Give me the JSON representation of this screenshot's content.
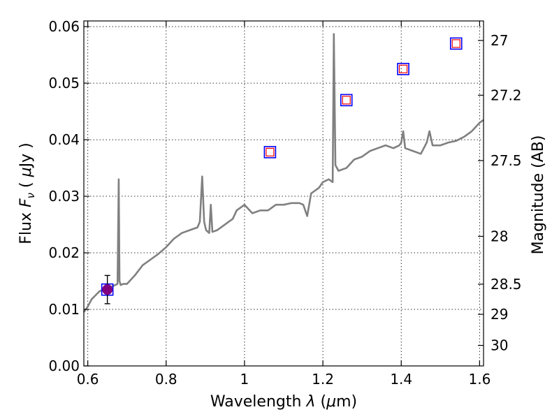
{
  "chart_data": {
    "type": "line",
    "xlabel": "Wavelength",
    "xlabel_symbol": "λ",
    "xlabel_unit_open": "(",
    "xlabel_unit_mu": "μ",
    "xlabel_unit_rest": "m)",
    "ylabel": "Flux",
    "ylabel_symbol": "F",
    "ylabel_sub": "ν",
    "ylabel_unit_open": "(",
    "ylabel_unit_mu": "μ",
    "ylabel_unit_rest": "Jy )",
    "y2label": "Magnitude (AB)",
    "xlim": [
      0.59,
      1.61
    ],
    "ylim": [
      0.0,
      0.061
    ],
    "grid": true,
    "x_ticks": [
      0.6,
      0.8,
      1.0,
      1.2,
      1.4,
      1.6
    ],
    "x_tick_labels": [
      "0.6",
      "0.8",
      "1",
      "1.2",
      "1.4",
      "1.6"
    ],
    "y_ticks": [
      0.0,
      0.01,
      0.02,
      0.03,
      0.04,
      0.05,
      0.06
    ],
    "y_tick_labels": [
      "0.00",
      "0.01",
      "0.02",
      "0.03",
      "0.04",
      "0.05",
      "0.06"
    ],
    "y2_ticks": [
      27,
      27.2,
      27.5,
      28,
      28.5,
      29,
      30
    ],
    "y2_tick_labels": [
      "27",
      "27.2",
      "27.5",
      "28",
      "28.5",
      "29",
      "30"
    ],
    "model_color": "#808080",
    "model_spectrum": {
      "x": [
        0.59,
        0.6,
        0.61,
        0.62,
        0.63,
        0.64,
        0.65,
        0.66,
        0.67,
        0.676,
        0.679,
        0.681,
        0.684,
        0.69,
        0.7,
        0.72,
        0.74,
        0.76,
        0.78,
        0.8,
        0.82,
        0.84,
        0.86,
        0.88,
        0.886,
        0.892,
        0.897,
        0.902,
        0.91,
        0.914,
        0.918,
        0.93,
        0.95,
        0.96,
        0.97,
        0.98,
        1.0,
        1.02,
        1.04,
        1.06,
        1.08,
        1.1,
        1.12,
        1.14,
        1.15,
        1.16,
        1.17,
        1.19,
        1.2,
        1.215,
        1.225,
        1.228,
        1.232,
        1.236,
        1.24,
        1.26,
        1.28,
        1.3,
        1.32,
        1.34,
        1.36,
        1.38,
        1.395,
        1.4,
        1.405,
        1.41,
        1.43,
        1.45,
        1.465,
        1.472,
        1.48,
        1.5,
        1.52,
        1.54,
        1.56,
        1.58,
        1.6,
        1.61
      ],
      "y": [
        0.0095,
        0.0105,
        0.0118,
        0.0125,
        0.0132,
        0.0135,
        0.0138,
        0.014,
        0.0143,
        0.0145,
        0.033,
        0.015,
        0.0143,
        0.0145,
        0.0145,
        0.016,
        0.0178,
        0.0188,
        0.0198,
        0.021,
        0.0225,
        0.0235,
        0.024,
        0.0245,
        0.0255,
        0.0335,
        0.0255,
        0.024,
        0.0235,
        0.0285,
        0.0237,
        0.024,
        0.025,
        0.0255,
        0.026,
        0.0275,
        0.0285,
        0.027,
        0.0275,
        0.0275,
        0.0285,
        0.0285,
        0.0288,
        0.0288,
        0.0285,
        0.0265,
        0.0305,
        0.0315,
        0.0325,
        0.033,
        0.0325,
        0.0587,
        0.0355,
        0.035,
        0.0345,
        0.035,
        0.0365,
        0.037,
        0.038,
        0.0385,
        0.039,
        0.0385,
        0.039,
        0.0395,
        0.0415,
        0.0385,
        0.038,
        0.0375,
        0.0395,
        0.0415,
        0.039,
        0.039,
        0.0395,
        0.0398,
        0.0405,
        0.0415,
        0.043,
        0.0435
      ]
    },
    "photometry": [
      {
        "x": 0.65,
        "y": 0.0135,
        "yerr": 0.0025,
        "marker": "filled-circle"
      },
      {
        "x": 1.065,
        "y": 0.0378,
        "marker": "open-square"
      },
      {
        "x": 1.26,
        "y": 0.047,
        "marker": "open-square"
      },
      {
        "x": 1.405,
        "y": 0.0525,
        "marker": "open-square"
      },
      {
        "x": 1.54,
        "y": 0.057,
        "marker": "open-square"
      }
    ],
    "model_points": [
      {
        "x": 0.65,
        "y": 0.0135
      },
      {
        "x": 1.065,
        "y": 0.0378
      },
      {
        "x": 1.26,
        "y": 0.047
      },
      {
        "x": 1.405,
        "y": 0.0525
      },
      {
        "x": 1.54,
        "y": 0.057
      }
    ],
    "colors": {
      "model_point": "#0000ff",
      "observed_open": "#ff0000",
      "observed_filled": "#800080",
      "errorbar": "#000000"
    }
  }
}
